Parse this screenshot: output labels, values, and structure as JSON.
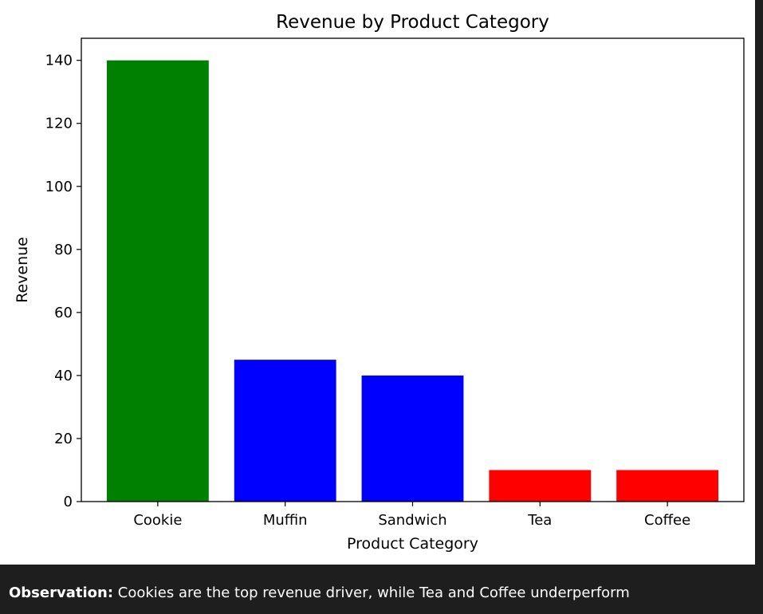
{
  "chart_data": {
    "type": "bar",
    "title": "Revenue by Product Category",
    "xlabel": "Product Category",
    "ylabel": "Revenue",
    "categories": [
      "Cookie",
      "Muffin",
      "Sandwich",
      "Tea",
      "Coffee"
    ],
    "values": [
      140,
      45,
      40,
      10,
      10
    ],
    "colors": [
      "#008000",
      "#0000ff",
      "#0000ff",
      "#ff0000",
      "#ff0000"
    ],
    "ylim": [
      0,
      147
    ],
    "yticks": [
      0,
      20,
      40,
      60,
      80,
      100,
      120,
      140
    ],
    "grid": false,
    "legend": "none"
  },
  "observation": {
    "label": "Observation:",
    "text": " Cookies are the top revenue driver, while Tea and Coffee underperform"
  }
}
